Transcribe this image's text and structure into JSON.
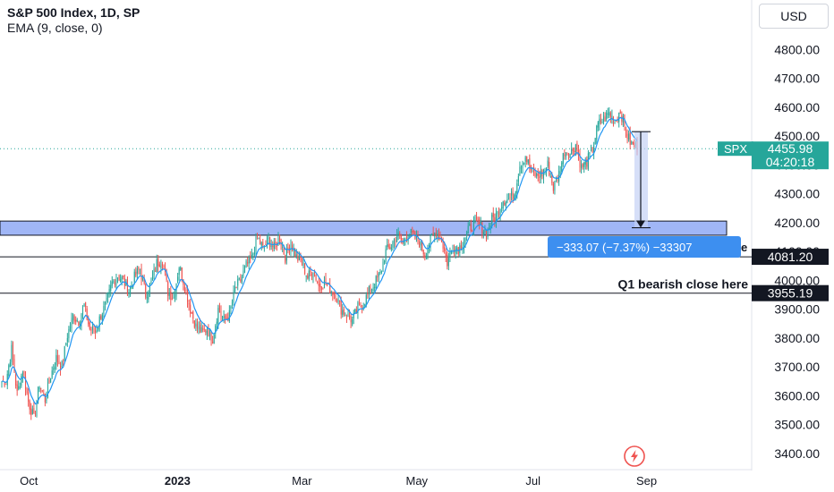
{
  "header": {
    "title": "S&P 500 Index, 1D, SP",
    "indicator": "EMA (9, close, 0)",
    "currency": "USD"
  },
  "colors": {
    "up": "#26a69a",
    "down": "#ef5350",
    "ema": "#2196f3",
    "zone": "#8fa9f5",
    "price_tag": "#26a69a",
    "measure_box": "#3d8ff0",
    "tag_dark": "#131722"
  },
  "price_tag": {
    "symbol": "SPX",
    "price": "4455.98",
    "countdown": "04:20:18"
  },
  "levels": [
    {
      "value": 4081.2,
      "label": "4081.20",
      "text": ""
    },
    {
      "value": 3955.19,
      "label": "3955.19",
      "text": "Q1 bearish close here"
    }
  ],
  "measure": {
    "from": 4515,
    "to": 4182,
    "label": "−333.07 (−7.37%) −33307",
    "hidden_suffix": "e"
  },
  "zone": {
    "from": 4156,
    "to": 4205
  },
  "footer_icon": "lightning-icon",
  "chart_data": {
    "type": "candlestick",
    "title": "S&P 500 Index, 1D, SP",
    "ylim": [
      3350,
      4900
    ],
    "yticks": [
      3400,
      3500,
      3600,
      3700,
      3800,
      3900,
      4000,
      4100,
      4200,
      4300,
      4400,
      4500,
      4600,
      4700,
      4800
    ],
    "ytick_labels": [
      "3400.00",
      "3500.00",
      "3600.00",
      "3700.00",
      "3800.00",
      "3900.00",
      "4000.00",
      "4100.00",
      "4200.00",
      "4300.00",
      "4400.00",
      "4500.00",
      "4600.00",
      "4700.00",
      "4800.00"
    ],
    "x_labels": [
      "Oct",
      "2023",
      "Mar",
      "May",
      "Jul",
      "Sep"
    ],
    "x_label_bars": [
      20,
      130,
      222,
      307,
      393,
      477
    ],
    "bar_count": 470,
    "x_range": [
      0,
      530
    ],
    "grid": false,
    "series": [
      {
        "name": "S&P 500 Index",
        "close": [
          3650,
          3760,
          3605,
          3690,
          3580,
          3520,
          3640,
          3585,
          3670,
          3730,
          3700,
          3810,
          3875,
          3860,
          3910,
          3830,
          3820,
          3880,
          3920,
          3990,
          4015,
          4000,
          3960,
          4010,
          4040,
          3950,
          3990,
          4060,
          4070,
          3960,
          3940,
          4050,
          3980,
          3900,
          3840,
          3820,
          3830,
          3800,
          3900,
          3860,
          3880,
          3970,
          4000,
          4050,
          4075,
          4150,
          4110,
          4140,
          4110,
          4150,
          4080,
          4130,
          4080,
          4060,
          4010,
          4040,
          3980,
          3990,
          3970,
          3950,
          3900,
          3880,
          3860,
          3905,
          3920,
          3960,
          3990,
          4020,
          4100,
          4120,
          4160,
          4130,
          4170,
          4150,
          4130,
          4090,
          4140,
          4170,
          4140,
          4060,
          4120,
          4110,
          4140,
          4180,
          4200,
          4190,
          4160,
          4210,
          4230,
          4280,
          4280,
          4300,
          4400,
          4430,
          4380,
          4360,
          4370,
          4400,
          4320,
          4370,
          4450,
          4440,
          4470,
          4390,
          4410,
          4455,
          4540,
          4560,
          4580,
          4550,
          4590,
          4510,
          4470,
          4460
        ],
        "ema_period": 9
      }
    ]
  }
}
